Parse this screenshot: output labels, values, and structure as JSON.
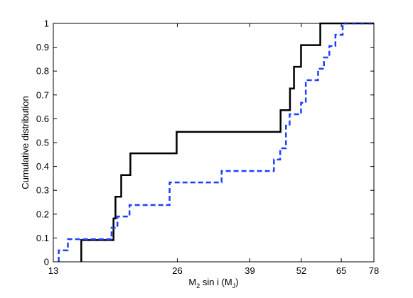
{
  "chart_data": {
    "type": "line",
    "title": "",
    "xlabel": {
      "parts": [
        {
          "text": "M",
          "sub": false
        },
        {
          "text": "2",
          "sub": true
        },
        {
          "text": " sin i  (M",
          "sub": false
        },
        {
          "text": "J",
          "sub": true
        },
        {
          "text": ")",
          "sub": false
        }
      ]
    },
    "ylabel": "Cumulative distribution",
    "x_scale": "log",
    "xlim": [
      13,
      78
    ],
    "ylim": [
      0,
      1
    ],
    "x_ticks": [
      13,
      26,
      39,
      52,
      65,
      78
    ],
    "x_tick_labels": [
      "13",
      "26",
      "39",
      "52",
      "65",
      "78"
    ],
    "y_ticks": [
      0,
      0.1,
      0.2,
      0.3,
      0.4,
      0.5,
      0.6,
      0.7,
      0.8,
      0.9,
      1
    ],
    "y_tick_labels": [
      "0",
      "0.1",
      "0.2",
      "0.3",
      "0.4",
      "0.5",
      "0.6",
      "0.7",
      "0.8",
      "0.9",
      "1"
    ],
    "grid": false,
    "legend": "none",
    "series": [
      {
        "style": "solid",
        "color": "#000000",
        "line_width": 2.5,
        "step_x": [
          15.2,
          18.2,
          18.4,
          19.0,
          20.0,
          25.9,
          46.3,
          48.8,
          49.9,
          51.9,
          57.8,
          78
        ],
        "step_y": [
          0.091,
          0.182,
          0.273,
          0.364,
          0.455,
          0.545,
          0.636,
          0.727,
          0.818,
          0.909,
          1.0,
          1.0
        ]
      },
      {
        "style": "dashed",
        "color": "#1f3fff",
        "line_width": 2.5,
        "step_x": [
          13.4,
          14.1,
          18.0,
          18.6,
          19.9,
          24.9,
          33.3,
          44.6,
          46.2,
          47.7,
          48.7,
          51.9,
          53.3,
          57.1,
          59.0,
          60.8,
          62.9,
          65.5,
          68.2,
          72.0,
          78
        ],
        "step_y": [
          0.048,
          0.095,
          0.143,
          0.19,
          0.238,
          0.333,
          0.381,
          0.429,
          0.476,
          0.571,
          0.619,
          0.667,
          0.762,
          0.81,
          0.857,
          0.905,
          0.952,
          1.0,
          1.0,
          1.0,
          1.0
        ]
      }
    ]
  }
}
